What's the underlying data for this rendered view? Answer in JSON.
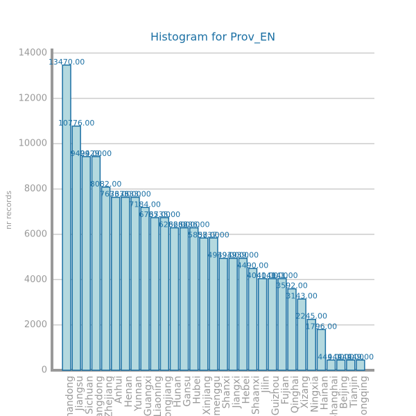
{
  "chart_data": {
    "type": "bar",
    "title": "Histogram for Prov_EN",
    "ylabel": "nr records",
    "categories": [
      "Shandong",
      "Jiangsu",
      "Sichuan",
      "Guangdong",
      "Zhejiang",
      "Anhui",
      "Henan",
      "Yunnan",
      "Guangxi",
      "Liaoning",
      "Heilongjiang",
      "Hunan",
      "Gansu",
      "Hubei",
      "Xinjiang",
      "Neimenggu",
      "Shanxi",
      "Jiangxi",
      "Hebei",
      "Shaanxi",
      "Jilin",
      "Guizhou",
      "Fujian",
      "Qinghai",
      "Xizang",
      "Ningxia",
      "Hainan",
      "Shanghai",
      "Beijing",
      "Tianjin",
      "Chongqing"
    ],
    "values": [
      13470,
      10776,
      9429,
      9429,
      8082,
      7633,
      7633,
      7633,
      7184,
      6735,
      6735,
      6286,
      6286,
      6286,
      5837,
      5837,
      4939,
      4939,
      4939,
      4490,
      4041,
      4041,
      4041,
      3592,
      3143,
      2245,
      1796,
      449,
      449,
      449,
      449
    ],
    "value_labels": [
      "13470.00",
      "10776.00",
      "9429.00",
      "9429.00",
      "8082.00",
      "7633.00",
      "7633.00",
      "7633.00",
      "7184.00",
      "6735.00",
      "6735.00",
      "6286.00",
      "6286.00",
      "6286.00",
      "5837.00",
      "5837.00",
      "4939.00",
      "4939.00",
      "4939.00",
      "4490.00",
      "4041.00",
      "4041.00",
      "4041.00",
      "3592.00",
      "3143.00",
      "2245.00",
      "1796.00",
      "449.00",
      "449.00",
      "449.00",
      "449.00"
    ],
    "color": "#b4d9df",
    "edge_color": "#1a6fa3",
    "ylim": [
      0,
      14200
    ],
    "yticks": [
      0,
      2000,
      4000,
      6000,
      8000,
      10000,
      12000,
      14000
    ],
    "grid": true
  }
}
